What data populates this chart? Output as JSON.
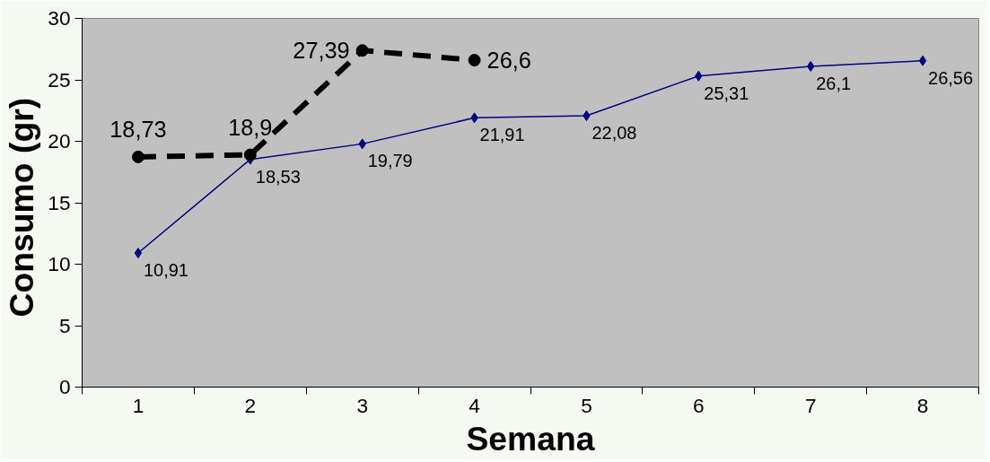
{
  "chart_data": {
    "type": "line",
    "xlabel": "Semana",
    "ylabel": "Consumo  (gr)",
    "categories": [
      "1",
      "2",
      "3",
      "4",
      "5",
      "6",
      "7",
      "8"
    ],
    "ylim": [
      0,
      30
    ],
    "yticks": [
      0,
      5,
      10,
      15,
      20,
      25,
      30
    ],
    "grid": false,
    "series": [
      {
        "color": "#000080",
        "marker": "diamond",
        "line_style": "solid",
        "values": [
          10.91,
          18.53,
          19.79,
          21.91,
          22.08,
          25.31,
          26.1,
          26.56
        ],
        "value_labels": [
          "10,91",
          "18,53",
          "19,79",
          "21,91",
          "22,08",
          "25,31",
          "26,1",
          "26,56"
        ]
      },
      {
        "color": "#000000",
        "marker": "circle",
        "line_style": "dashed",
        "values": [
          18.73,
          18.9,
          27.39,
          26.6,
          null,
          null,
          null,
          null
        ],
        "value_labels": [
          "18,73",
          "18,9",
          "27,39",
          "26,6",
          null,
          null,
          null,
          null
        ]
      }
    ]
  }
}
